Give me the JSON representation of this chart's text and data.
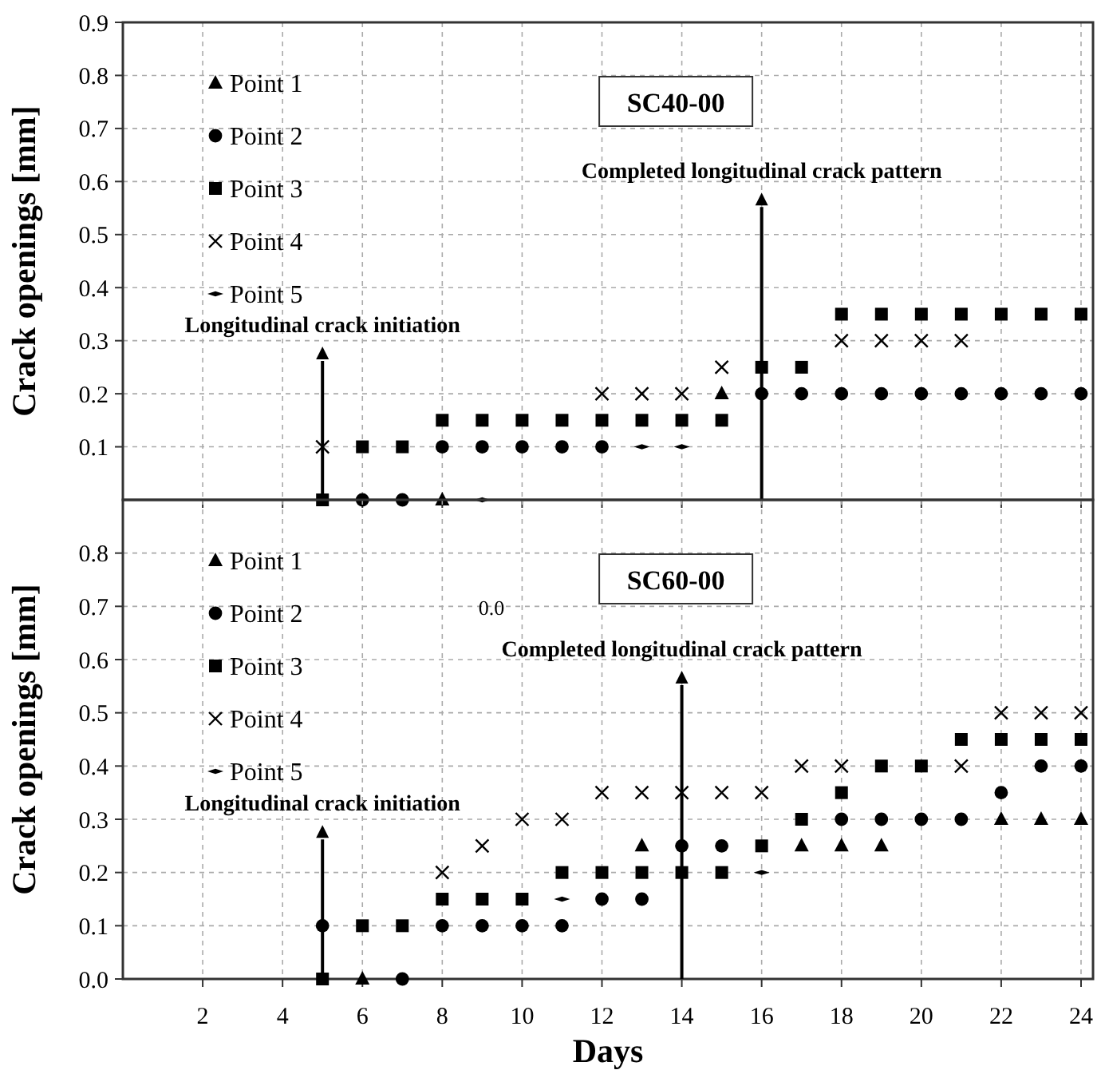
{
  "chart_data": [
    {
      "type": "scatter",
      "title": "SC40-00",
      "ylabel": "Crack openings [mm]",
      "xlim": [
        0,
        24.3
      ],
      "xticks": [
        2,
        4,
        6,
        8,
        10,
        12,
        14,
        16,
        18,
        20,
        22,
        24
      ],
      "ylim": [
        0,
        0.9
      ],
      "yticks": [
        0.1,
        0.2,
        0.3,
        0.4,
        0.5,
        0.6,
        0.7,
        0.8,
        0.9
      ],
      "tick_labels": "y",
      "grid": true,
      "legend": "top left",
      "annotations": [
        {
          "text": "Longitudinal crack initiation",
          "x": 5,
          "y": 0.28
        },
        {
          "text": "Completed longitudinal crack pattern",
          "x": 16,
          "y": 0.57
        }
      ],
      "series": [
        {
          "name": "Point 1",
          "color": "#000000",
          "marker": "triangle",
          "x": [
            8,
            15
          ],
          "values": [
            0,
            0.2
          ]
        },
        {
          "name": "Point 2",
          "color": "#000000",
          "marker": "circle",
          "x": [
            6,
            7,
            8,
            9,
            10,
            11,
            12,
            16,
            17,
            18,
            19,
            20,
            21,
            22,
            23,
            24
          ],
          "values": [
            0,
            0,
            0.1,
            0.1,
            0.1,
            0.1,
            0.1,
            0.2,
            0.2,
            0.2,
            0.2,
            0.2,
            0.2,
            0.2,
            0.2,
            0.2
          ]
        },
        {
          "name": "Point 3",
          "color": "#000000",
          "marker": "square",
          "x": [
            5,
            6,
            7,
            8,
            9,
            10,
            11,
            12,
            13,
            14,
            15,
            16,
            17,
            18,
            19,
            20,
            21,
            22,
            23,
            24
          ],
          "values": [
            0,
            0.1,
            0.1,
            0.15,
            0.15,
            0.15,
            0.15,
            0.15,
            0.15,
            0.15,
            0.15,
            0.25,
            0.25,
            0.35,
            0.35,
            0.35,
            0.35,
            0.35,
            0.35,
            0.35
          ]
        },
        {
          "name": "Point 4",
          "color": "#000000",
          "marker": "cross",
          "x": [
            5,
            12,
            13,
            14,
            15,
            18,
            19,
            20,
            21
          ],
          "values": [
            0.1,
            0.2,
            0.2,
            0.2,
            0.25,
            0.3,
            0.3,
            0.3,
            0.3
          ]
        },
        {
          "name": "Point 5",
          "color": "#000000",
          "marker": "diamond",
          "x": [
            9,
            13,
            14
          ],
          "values": [
            0,
            0.1,
            0.1
          ]
        }
      ]
    },
    {
      "type": "scatter",
      "title": "SC60-00",
      "xlabel": "Days",
      "ylabel": "Crack openings [mm]",
      "xlim": [
        0,
        24.3
      ],
      "xticks": [
        2,
        4,
        6,
        8,
        10,
        12,
        14,
        16,
        18,
        20,
        22,
        24
      ],
      "ylim": [
        0,
        0.9
      ],
      "yticks": [
        {
          "value": 0,
          "label": "0.0"
        },
        0.1,
        0.2,
        0.3,
        0.4,
        0.5,
        0.6,
        0.7,
        0.8
      ],
      "grid": true,
      "legend": "top left",
      "annotations": [
        "0.0",
        {
          "text": "Longitudinal crack initiation",
          "x": 5,
          "y": 0.28
        },
        {
          "text": "Completed longitudinal crack pattern",
          "x": 14,
          "y": 0.57
        }
      ],
      "series": [
        {
          "name": "Point 1",
          "color": "#000000",
          "marker": "triangle",
          "x": [
            6,
            13,
            17,
            18,
            19,
            22,
            23,
            24
          ],
          "values": [
            0,
            0.25,
            0.25,
            0.25,
            0.25,
            0.3,
            0.3,
            0.3
          ]
        },
        {
          "name": "Point 2",
          "color": "#000000",
          "marker": "circle",
          "x": [
            5,
            7,
            8,
            9,
            10,
            11,
            12,
            13,
            14,
            15,
            18,
            19,
            20,
            21,
            22,
            23,
            24
          ],
          "values": [
            0.1,
            0,
            0.1,
            0.1,
            0.1,
            0.1,
            0.15,
            0.15,
            0.25,
            0.25,
            0.3,
            0.3,
            0.3,
            0.3,
            0.35,
            0.4,
            0.4
          ]
        },
        {
          "name": "Point 3",
          "color": "#000000",
          "marker": "square",
          "x": [
            5,
            6,
            7,
            8,
            9,
            10,
            11,
            12,
            13,
            14,
            15,
            16,
            17,
            18,
            19,
            20,
            21,
            22,
            23,
            24
          ],
          "values": [
            0,
            0.1,
            0.1,
            0.15,
            0.15,
            0.15,
            0.2,
            0.2,
            0.2,
            0.2,
            0.2,
            0.25,
            0.3,
            0.35,
            0.4,
            0.4,
            0.45,
            0.45,
            0.45,
            0.45
          ]
        },
        {
          "name": "Point 4",
          "color": "#000000",
          "marker": "cross",
          "x": [
            8,
            9,
            10,
            11,
            12,
            13,
            14,
            15,
            16,
            17,
            18,
            21,
            22,
            23,
            24
          ],
          "values": [
            0.2,
            0.25,
            0.3,
            0.3,
            0.35,
            0.35,
            0.35,
            0.35,
            0.35,
            0.4,
            0.4,
            0.4,
            0.5,
            0.5,
            0.5
          ]
        },
        {
          "name": "Point 5",
          "color": "#000000",
          "marker": "diamond",
          "x": [
            11,
            16
          ],
          "values": [
            0.15,
            0.2
          ]
        }
      ]
    }
  ]
}
